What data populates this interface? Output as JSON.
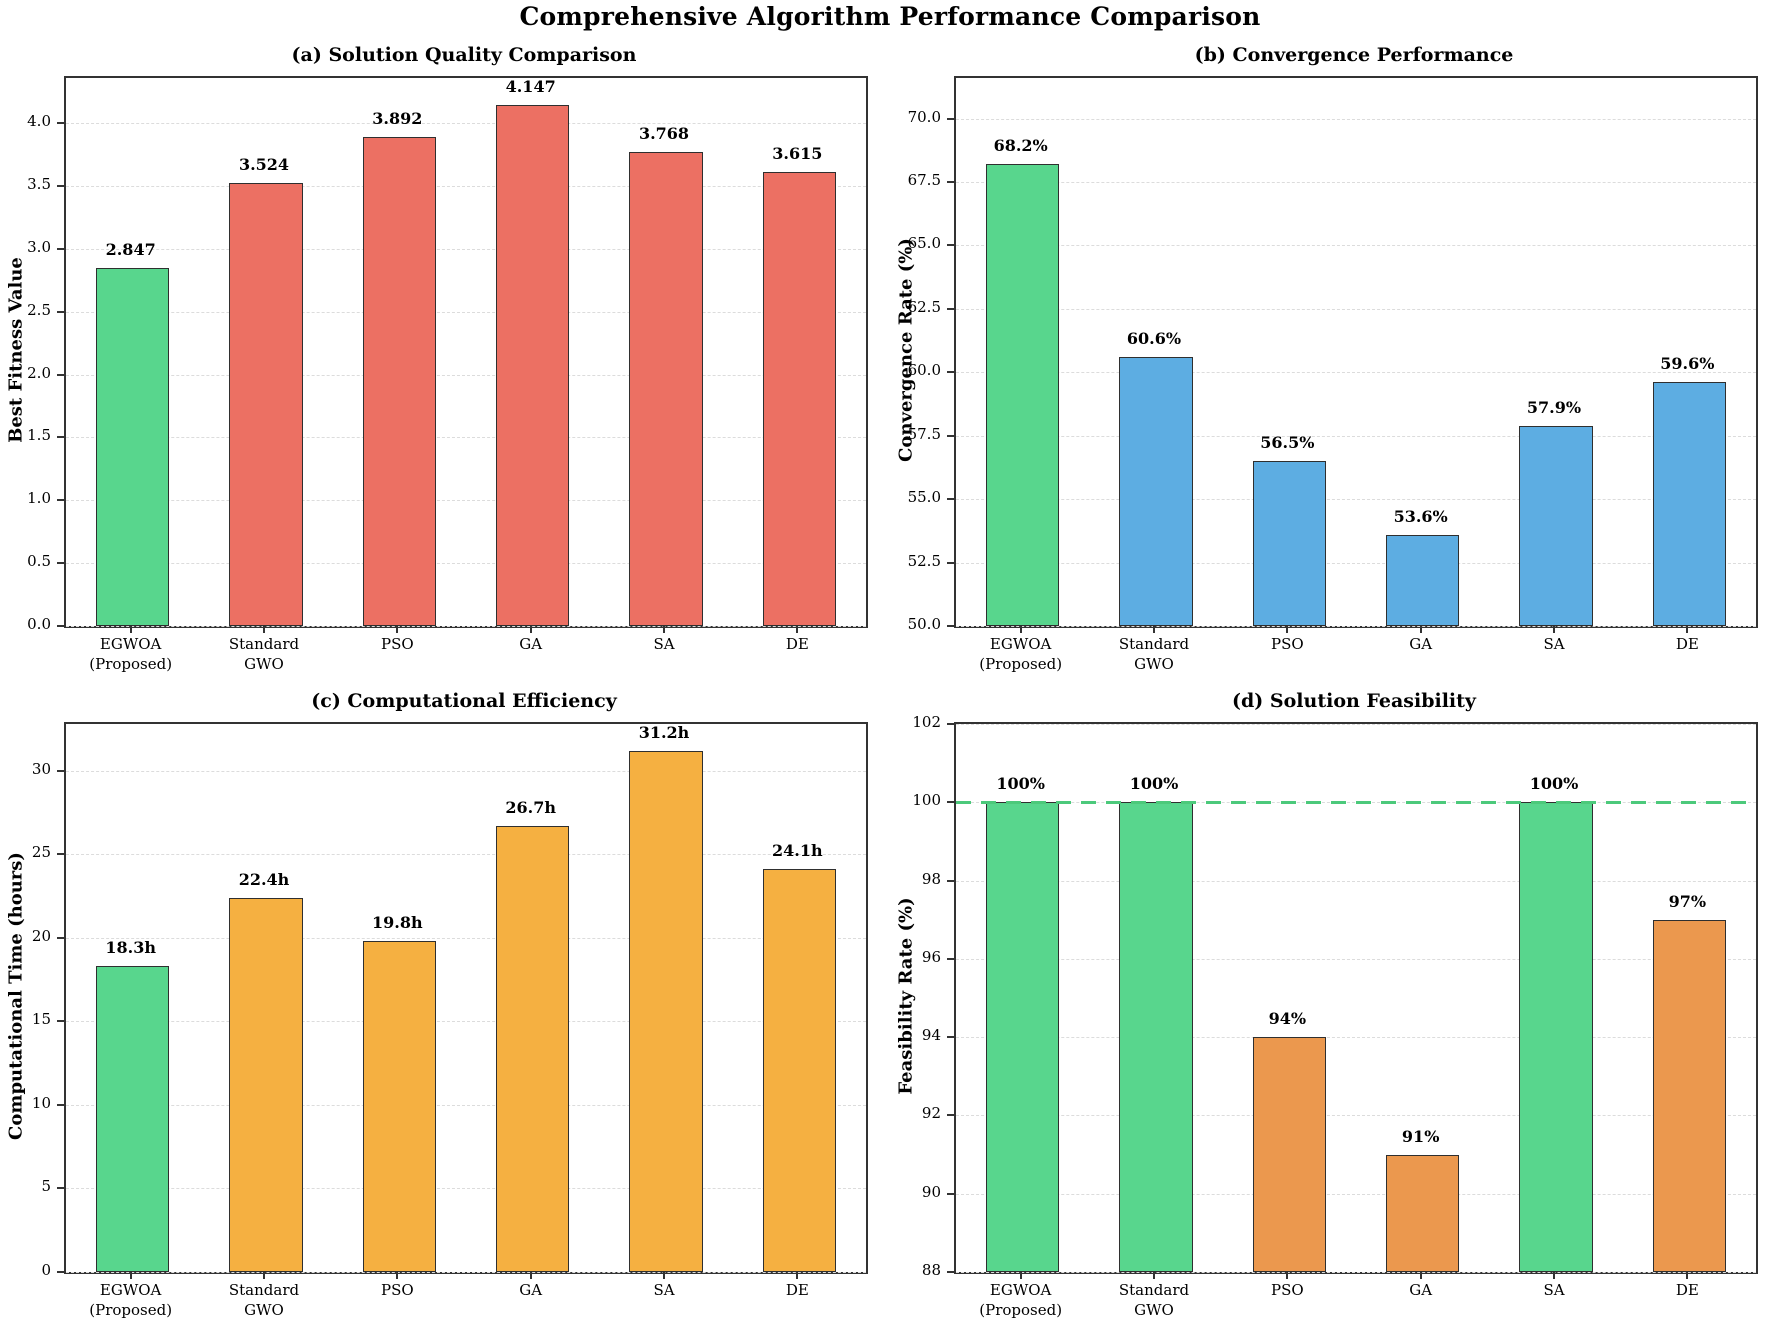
{
  "title": "Comprehensive Algorithm Performance Comparison",
  "colors": {
    "highlight_green": "#58D68D",
    "red": "#EC7063",
    "blue": "#5DADE2",
    "orange": "#F5B041",
    "orange_dark": "#EB984E",
    "reference_line_green": "#4CC97B",
    "grid": "#dcdcdc",
    "spine": "#333333"
  },
  "chart_data": [
    {
      "type": "bar",
      "title": "(a) Solution Quality Comparison",
      "ylabel": "Best Fitness Value",
      "categories": [
        "EGWOA\n(Proposed)",
        "Standard\nGWO",
        "PSO",
        "GA",
        "SA",
        "DE"
      ],
      "values": [
        2.847,
        3.524,
        3.892,
        4.147,
        3.768,
        3.615
      ],
      "value_labels": [
        "2.847",
        "3.524",
        "3.892",
        "4.147",
        "3.768",
        "3.615"
      ],
      "bar_colors": [
        "#58D68D",
        "#EC7063",
        "#EC7063",
        "#EC7063",
        "#EC7063",
        "#EC7063"
      ],
      "ylim": [
        0,
        4.36
      ],
      "yticks": [
        0.0,
        0.5,
        1.0,
        1.5,
        2.0,
        2.5,
        3.0,
        3.5,
        4.0
      ],
      "ytick_labels": [
        "0.0",
        "0.5",
        "1.0",
        "1.5",
        "2.0",
        "2.5",
        "3.0",
        "3.5",
        "4.0"
      ],
      "grid": "dashed horizontal",
      "legend": "none"
    },
    {
      "type": "bar",
      "title": "(b) Convergence Performance",
      "ylabel": "Convergence Rate (%)",
      "categories": [
        "EGWOA\n(Proposed)",
        "Standard\nGWO",
        "PSO",
        "GA",
        "SA",
        "DE"
      ],
      "values": [
        68.2,
        60.6,
        56.5,
        53.6,
        57.9,
        59.6
      ],
      "value_labels": [
        "68.2%",
        "60.6%",
        "56.5%",
        "53.6%",
        "57.9%",
        "59.6%"
      ],
      "bar_colors": [
        "#58D68D",
        "#5DADE2",
        "#5DADE2",
        "#5DADE2",
        "#5DADE2",
        "#5DADE2"
      ],
      "ylim": [
        50,
        71.6
      ],
      "yticks": [
        50.0,
        52.5,
        55.0,
        57.5,
        60.0,
        62.5,
        65.0,
        67.5,
        70.0
      ],
      "ytick_labels": [
        "50.0",
        "52.5",
        "55.0",
        "57.5",
        "60.0",
        "62.5",
        "65.0",
        "67.5",
        "70.0"
      ],
      "grid": "dashed horizontal",
      "legend": "none"
    },
    {
      "type": "bar",
      "title": "(c) Computational Efficiency",
      "ylabel": "Computational Time (hours)",
      "categories": [
        "EGWOA\n(Proposed)",
        "Standard\nGWO",
        "PSO",
        "GA",
        "SA",
        "DE"
      ],
      "values": [
        18.3,
        22.4,
        19.8,
        26.7,
        31.2,
        24.1
      ],
      "value_labels": [
        "18.3h",
        "22.4h",
        "19.8h",
        "26.7h",
        "31.2h",
        "24.1h"
      ],
      "bar_colors": [
        "#58D68D",
        "#F5B041",
        "#F5B041",
        "#F5B041",
        "#F5B041",
        "#F5B041"
      ],
      "ylim": [
        0,
        32.8
      ],
      "yticks": [
        0,
        5,
        10,
        15,
        20,
        25,
        30
      ],
      "ytick_labels": [
        "0",
        "5",
        "10",
        "15",
        "20",
        "25",
        "30"
      ],
      "grid": "dashed horizontal",
      "legend": "none"
    },
    {
      "type": "bar",
      "title": "(d) Solution Feasibility",
      "ylabel": "Feasibility Rate (%)",
      "categories": [
        "EGWOA\n(Proposed)",
        "Standard\nGWO",
        "PSO",
        "GA",
        "SA",
        "DE"
      ],
      "values": [
        100,
        100,
        94,
        91,
        100,
        97
      ],
      "value_labels": [
        "100%",
        "100%",
        "94%",
        "91%",
        "100%",
        "97%"
      ],
      "bar_colors": [
        "#58D68D",
        "#58D68D",
        "#EB984E",
        "#EB984E",
        "#58D68D",
        "#EB984E"
      ],
      "ylim": [
        88,
        102
      ],
      "yticks": [
        88,
        90,
        92,
        94,
        96,
        98,
        100,
        102
      ],
      "ytick_labels": [
        "88",
        "90",
        "92",
        "94",
        "96",
        "98",
        "100",
        "102"
      ],
      "reference_line": {
        "value": 100,
        "style": "dashed",
        "color": "#4CC97B"
      },
      "grid": "dashed horizontal",
      "legend": "none"
    }
  ]
}
